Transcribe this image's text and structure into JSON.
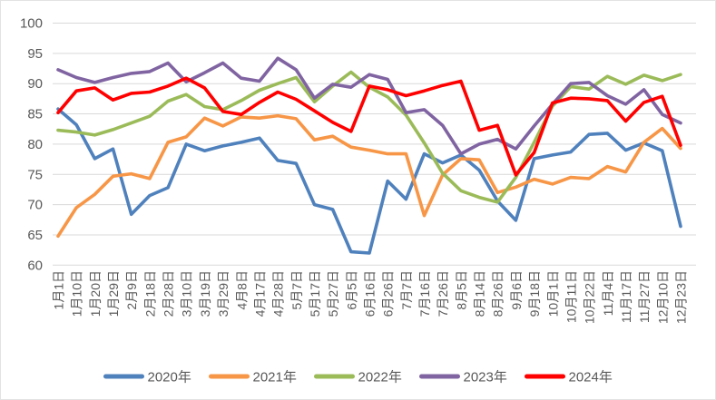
{
  "chart_data": {
    "type": "line",
    "title": "",
    "xlabel": "",
    "ylabel": "",
    "ylim": [
      60,
      100
    ],
    "ytick_step": 5,
    "grid": "horizontal-only",
    "legend_position": "bottom",
    "background_color": "#FFFFFF",
    "gridline_color": "#D9D9D9",
    "axis_text_color": "#595959",
    "categories": [
      "1月1日",
      "1月10日",
      "1月20日",
      "1月29日",
      "2月9日",
      "2月18日",
      "2月28日",
      "3月10日",
      "3月19日",
      "3月29日",
      "4月8日",
      "4月17日",
      "4月28日",
      "5月7日",
      "5月17日",
      "5月27日",
      "6月5日",
      "6月16日",
      "6月26日",
      "7月7日",
      "7月16日",
      "7月26日",
      "8月5日",
      "8月14日",
      "8月26日",
      "9月6日",
      "9月18日",
      "10月1日",
      "10月11日",
      "10月22日",
      "11月4日",
      "11月17日",
      "11月27日",
      "12月10日",
      "12月23日"
    ],
    "series": [
      {
        "name": "2020年",
        "color": "#4F81BD",
        "values": [
          85.8,
          83.2,
          77.6,
          79.2,
          68.4,
          71.5,
          72.8,
          80.0,
          78.9,
          79.7,
          80.3,
          81.0,
          77.3,
          76.8,
          70.0,
          69.2,
          62.2,
          62.0,
          73.9,
          70.9,
          78.4,
          76.9,
          78.2,
          75.7,
          70.6,
          67.4,
          77.6,
          78.2,
          78.7,
          81.6,
          81.8,
          79.0,
          80.2,
          78.9,
          66.4
        ]
      },
      {
        "name": "2021年",
        "color": "#F79646",
        "values": [
          64.8,
          69.5,
          71.7,
          74.7,
          75.1,
          74.3,
          80.3,
          81.2,
          84.3,
          83.0,
          84.5,
          84.3,
          84.7,
          84.2,
          80.7,
          81.3,
          79.5,
          79.0,
          78.4,
          78.4,
          68.2,
          74.9,
          77.6,
          77.4,
          72.0,
          72.9,
          74.2,
          73.4,
          74.5,
          74.3,
          76.3,
          75.4,
          80.3,
          82.6,
          79.3
        ]
      },
      {
        "name": "2022年",
        "color": "#9BBB59",
        "values": [
          82.3,
          82.0,
          81.5,
          82.4,
          83.5,
          84.6,
          87.1,
          88.2,
          86.2,
          85.7,
          87.2,
          88.9,
          90.0,
          91.0,
          87.0,
          89.6,
          91.9,
          89.4,
          87.8,
          84.8,
          80.2,
          75.2,
          72.3,
          71.2,
          70.4,
          74.5,
          80.3,
          86.3,
          89.5,
          89.1,
          91.2,
          89.9,
          91.4,
          90.5,
          91.5
        ]
      },
      {
        "name": "2023年",
        "color": "#8064A2",
        "values": [
          92.3,
          91.0,
          90.2,
          91.0,
          91.7,
          92.0,
          93.4,
          90.3,
          91.8,
          93.4,
          90.9,
          90.4,
          94.2,
          92.3,
          87.6,
          89.9,
          89.4,
          91.5,
          90.7,
          85.2,
          85.7,
          83.1,
          78.4,
          80.0,
          80.8,
          79.2,
          83.0,
          86.6,
          90.0,
          90.2,
          88.0,
          86.6,
          89.0,
          84.9,
          83.5
        ]
      },
      {
        "name": "2024年",
        "color": "#FF0000",
        "values": [
          85.2,
          88.8,
          89.3,
          87.3,
          88.4,
          88.6,
          89.6,
          90.9,
          89.3,
          85.4,
          84.9,
          86.9,
          88.6,
          87.4,
          85.5,
          83.6,
          82.1,
          89.6,
          89.0,
          88.0,
          88.8,
          89.7,
          90.4,
          82.3,
          83.1,
          74.9,
          78.6,
          86.8,
          87.6,
          87.5,
          87.2,
          83.8,
          86.9,
          87.9,
          79.8
        ]
      }
    ]
  }
}
